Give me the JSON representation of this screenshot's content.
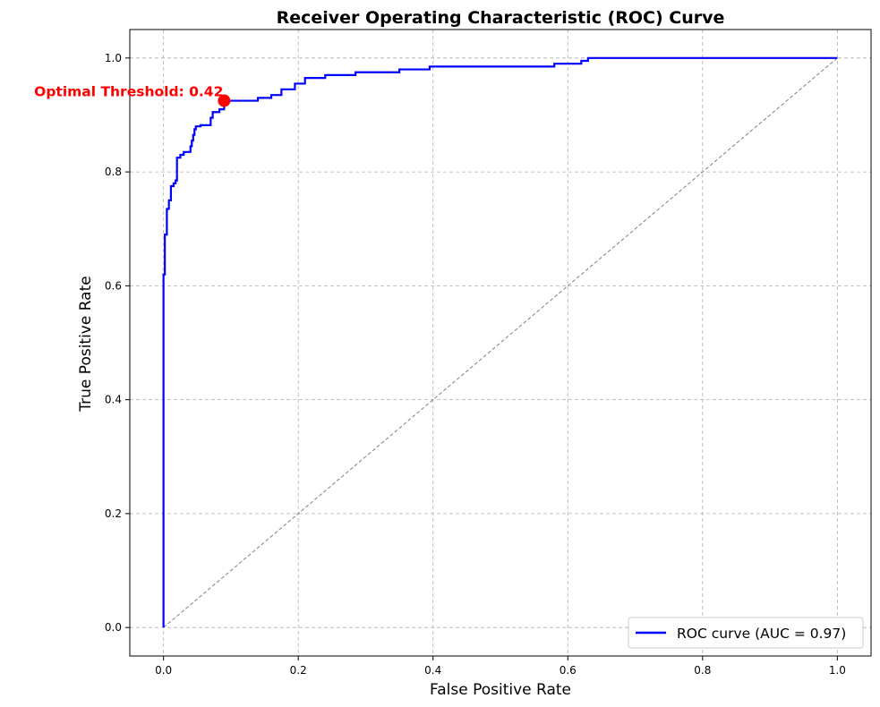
{
  "chart_data": {
    "type": "line",
    "title": "Receiver Operating Characteristic (ROC) Curve",
    "xlabel": "False Positive Rate",
    "ylabel": "True Positive Rate",
    "xlim": [
      -0.05,
      1.05
    ],
    "ylim": [
      -0.05,
      1.05
    ],
    "xticks": [
      0.0,
      0.2,
      0.4,
      0.6,
      0.8,
      1.0
    ],
    "yticks": [
      0.0,
      0.2,
      0.4,
      0.6,
      0.8,
      1.0
    ],
    "xtick_labels": [
      "0.0",
      "0.2",
      "0.4",
      "0.6",
      "0.8",
      "1.0"
    ],
    "ytick_labels": [
      "0.0",
      "0.2",
      "0.4",
      "0.6",
      "0.8",
      "1.0"
    ],
    "grid": true,
    "legend_position": "lower-right",
    "series": [
      {
        "name": "ROC curve (AUC = 0.97)",
        "color": "#0000ff",
        "style": "solid",
        "points": [
          [
            0.0,
            0.0
          ],
          [
            0.0,
            0.62
          ],
          [
            0.002,
            0.62
          ],
          [
            0.002,
            0.69
          ],
          [
            0.005,
            0.69
          ],
          [
            0.005,
            0.735
          ],
          [
            0.008,
            0.735
          ],
          [
            0.008,
            0.75
          ],
          [
            0.011,
            0.75
          ],
          [
            0.011,
            0.775
          ],
          [
            0.015,
            0.775
          ],
          [
            0.015,
            0.78
          ],
          [
            0.018,
            0.78
          ],
          [
            0.018,
            0.785
          ],
          [
            0.02,
            0.785
          ],
          [
            0.02,
            0.825
          ],
          [
            0.025,
            0.825
          ],
          [
            0.025,
            0.83
          ],
          [
            0.03,
            0.83
          ],
          [
            0.03,
            0.835
          ],
          [
            0.04,
            0.835
          ],
          [
            0.04,
            0.845
          ],
          [
            0.042,
            0.845
          ],
          [
            0.042,
            0.855
          ],
          [
            0.044,
            0.855
          ],
          [
            0.044,
            0.865
          ],
          [
            0.046,
            0.865
          ],
          [
            0.046,
            0.875
          ],
          [
            0.048,
            0.875
          ],
          [
            0.048,
            0.88
          ],
          [
            0.055,
            0.88
          ],
          [
            0.055,
            0.882
          ],
          [
            0.07,
            0.882
          ],
          [
            0.07,
            0.895
          ],
          [
            0.073,
            0.895
          ],
          [
            0.073,
            0.905
          ],
          [
            0.083,
            0.905
          ],
          [
            0.083,
            0.91
          ],
          [
            0.09,
            0.91
          ],
          [
            0.09,
            0.925
          ],
          [
            0.14,
            0.925
          ],
          [
            0.14,
            0.93
          ],
          [
            0.16,
            0.93
          ],
          [
            0.16,
            0.935
          ],
          [
            0.175,
            0.935
          ],
          [
            0.175,
            0.945
          ],
          [
            0.195,
            0.945
          ],
          [
            0.195,
            0.955
          ],
          [
            0.21,
            0.955
          ],
          [
            0.21,
            0.965
          ],
          [
            0.24,
            0.965
          ],
          [
            0.24,
            0.97
          ],
          [
            0.285,
            0.97
          ],
          [
            0.285,
            0.975
          ],
          [
            0.35,
            0.975
          ],
          [
            0.35,
            0.98
          ],
          [
            0.395,
            0.98
          ],
          [
            0.395,
            0.985
          ],
          [
            0.58,
            0.985
          ],
          [
            0.58,
            0.99
          ],
          [
            0.62,
            0.99
          ],
          [
            0.62,
            0.995
          ],
          [
            0.63,
            0.995
          ],
          [
            0.63,
            1.0
          ],
          [
            1.0,
            1.0
          ]
        ]
      },
      {
        "name": "",
        "color": "#808080",
        "style": "dashed",
        "points": [
          [
            0.0,
            0.0
          ],
          [
            1.0,
            1.0
          ]
        ]
      }
    ],
    "annotation": {
      "text": "Optimal Threshold: 0.42",
      "color": "#ff0000",
      "point": [
        0.09,
        0.925
      ]
    }
  }
}
